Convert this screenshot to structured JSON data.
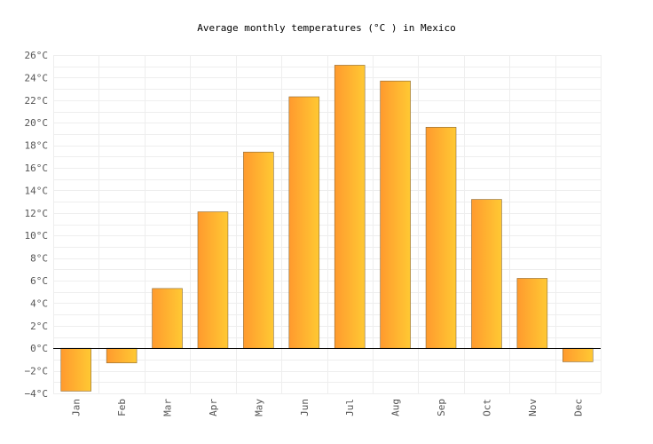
{
  "chart_data": {
    "type": "bar",
    "title": "Average monthly temperatures (°C ) in Mexico",
    "categories": [
      "Jan",
      "Feb",
      "Mar",
      "Apr",
      "May",
      "Jun",
      "Jul",
      "Aug",
      "Sep",
      "Oct",
      "Nov",
      "Dec"
    ],
    "series": [
      {
        "values": [
          -3.8,
          -1.3,
          5.3,
          12.1,
          17.4,
          22.3,
          25.1,
          23.7,
          19.6,
          13.2,
          6.2,
          -1.2
        ]
      }
    ],
    "ylim": [
      -4,
      26
    ],
    "yticks": [
      "−4°C",
      "−2°C",
      "0°C",
      "2°C",
      "4°C",
      "6°C",
      "8°C",
      "10°C",
      "12°C",
      "14°C",
      "16°C",
      "18°C",
      "20°C",
      "22°C",
      "24°C",
      "26°C"
    ],
    "grid": true,
    "colors": {
      "bar_left": "#ff9a2e",
      "bar_right": "#ffc933",
      "bar_stroke": "#8a6a3a",
      "grid": "#eeeeee",
      "zero_line": "#000000"
    }
  }
}
